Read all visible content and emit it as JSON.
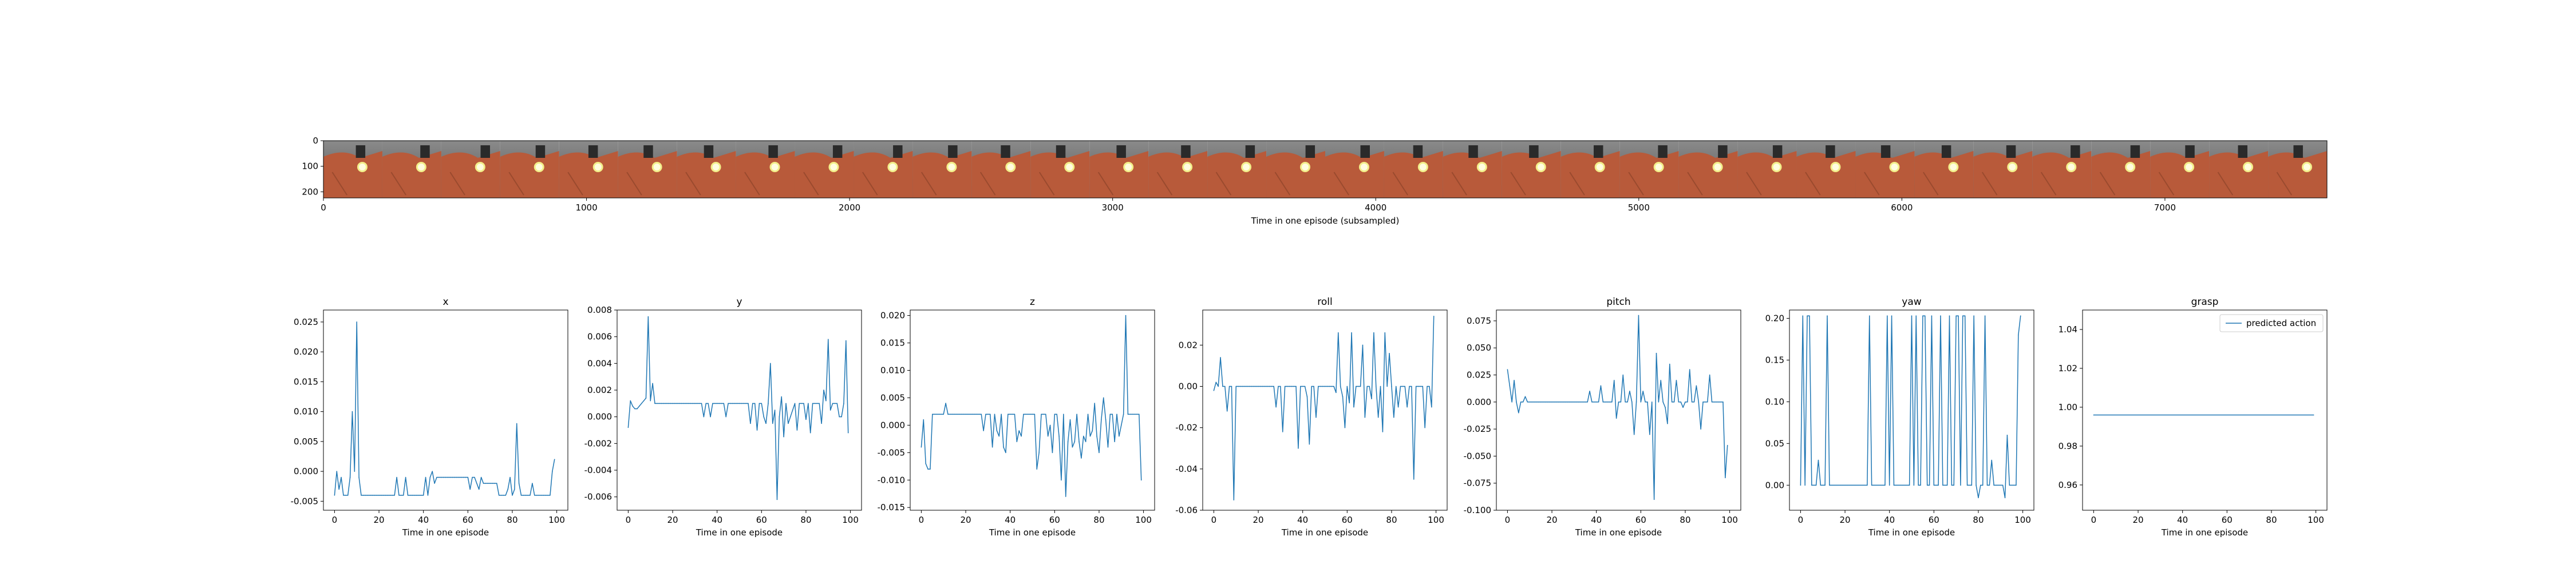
{
  "strip": {
    "xlabel": "Time in one episode (subsampled)",
    "xlim": [
      0,
      7616
    ],
    "ylim": [
      224,
      0
    ],
    "xticks": [
      0,
      1000,
      2000,
      3000,
      4000,
      5000,
      6000,
      7000
    ],
    "yticks": [
      0,
      100,
      200
    ],
    "frame_count": 34,
    "colors": {
      "robot": "#b85a3a",
      "floor": "#6e6e6e",
      "light": "#f3ef8a",
      "gripper": "#2a2a2a"
    }
  },
  "series_color": "#1f77b4",
  "chart_data": [
    {
      "type": "line",
      "title": "x",
      "xlabel": "Time in one episode",
      "xlim": [
        -5,
        105
      ],
      "ylim": [
        -0.0065,
        0.027
      ],
      "xticks": [
        0,
        20,
        40,
        60,
        80,
        100
      ],
      "yticks": [
        -0.005,
        0.0,
        0.005,
        0.01,
        0.015,
        0.02,
        0.025
      ],
      "yformat": 3,
      "x": [
        0,
        1,
        2,
        3,
        4,
        5,
        6,
        7,
        8,
        9,
        10,
        11,
        12,
        13,
        14,
        15,
        16,
        17,
        18,
        19,
        20,
        21,
        22,
        23,
        24,
        25,
        26,
        27,
        28,
        29,
        30,
        31,
        32,
        33,
        34,
        35,
        36,
        37,
        38,
        39,
        40,
        41,
        42,
        43,
        44,
        45,
        46,
        47,
        48,
        49,
        50,
        51,
        52,
        53,
        54,
        55,
        56,
        57,
        58,
        59,
        60,
        61,
        62,
        63,
        64,
        65,
        66,
        67,
        68,
        69,
        70,
        71,
        72,
        73,
        74,
        75,
        76,
        77,
        78,
        79,
        80,
        81,
        82,
        83,
        84,
        85,
        86,
        87,
        88,
        89,
        90,
        91,
        92,
        93,
        94,
        95,
        96,
        97,
        98,
        99
      ],
      "values": [
        -0.004,
        0.0,
        -0.003,
        -0.001,
        -0.004,
        -0.004,
        -0.004,
        -0.001,
        0.01,
        0.0,
        0.025,
        -0.001,
        -0.004,
        -0.004,
        -0.004,
        -0.004,
        -0.004,
        -0.004,
        -0.004,
        -0.004,
        -0.004,
        -0.004,
        -0.004,
        -0.004,
        -0.004,
        -0.004,
        -0.004,
        -0.004,
        -0.001,
        -0.004,
        -0.004,
        -0.004,
        -0.001,
        -0.004,
        -0.004,
        -0.004,
        -0.004,
        -0.004,
        -0.004,
        -0.004,
        -0.004,
        -0.001,
        -0.004,
        -0.001,
        0.0,
        -0.002,
        -0.001,
        -0.001,
        -0.001,
        -0.001,
        -0.001,
        -0.001,
        -0.001,
        -0.001,
        -0.001,
        -0.001,
        -0.001,
        -0.001,
        -0.001,
        -0.001,
        -0.001,
        -0.003,
        -0.001,
        -0.001,
        -0.002,
        -0.003,
        -0.001,
        -0.002,
        -0.002,
        -0.002,
        -0.002,
        -0.002,
        -0.002,
        -0.002,
        -0.004,
        -0.004,
        -0.004,
        -0.004,
        -0.003,
        -0.001,
        -0.004,
        -0.003,
        0.008,
        -0.002,
        -0.004,
        -0.004,
        -0.004,
        -0.004,
        -0.004,
        -0.002,
        -0.004,
        -0.004,
        -0.004,
        -0.004,
        -0.004,
        -0.004,
        -0.004,
        -0.004,
        0.0,
        0.002
      ]
    },
    {
      "type": "line",
      "title": "y",
      "xlabel": "Time in one episode",
      "xlim": [
        -5,
        105
      ],
      "ylim": [
        -0.007,
        0.008
      ],
      "xticks": [
        0,
        20,
        40,
        60,
        80,
        100
      ],
      "yticks": [
        -0.006,
        -0.004,
        -0.002,
        0.0,
        0.002,
        0.004,
        0.006,
        0.008
      ],
      "yformat": 3,
      "x": [
        0,
        1,
        2,
        3,
        4,
        5,
        6,
        7,
        8,
        9,
        10,
        11,
        12,
        13,
        14,
        15,
        16,
        17,
        18,
        19,
        20,
        21,
        22,
        23,
        24,
        25,
        26,
        27,
        28,
        29,
        30,
        31,
        32,
        33,
        34,
        35,
        36,
        37,
        38,
        39,
        40,
        41,
        42,
        43,
        44,
        45,
        46,
        47,
        48,
        49,
        50,
        51,
        52,
        53,
        54,
        55,
        56,
        57,
        58,
        59,
        60,
        61,
        62,
        63,
        64,
        65,
        66,
        67,
        68,
        69,
        70,
        71,
        72,
        73,
        74,
        75,
        76,
        77,
        78,
        79,
        80,
        81,
        82,
        83,
        84,
        85,
        86,
        87,
        88,
        89,
        90,
        91,
        92,
        93,
        94,
        95,
        96,
        97,
        98,
        99
      ],
      "values": [
        -0.0008,
        0.0012,
        0.0008,
        0.0006,
        0.0006,
        0.0008,
        0.001,
        0.0012,
        0.0014,
        0.0075,
        0.0012,
        0.0025,
        0.001,
        0.001,
        0.001,
        0.001,
        0.001,
        0.001,
        0.001,
        0.001,
        0.001,
        0.001,
        0.001,
        0.001,
        0.001,
        0.001,
        0.001,
        0.001,
        0.001,
        0.001,
        0.001,
        0.001,
        0.001,
        0.001,
        0.0,
        0.001,
        0.001,
        0.0,
        0.001,
        0.001,
        0.001,
        0.001,
        0.001,
        0.001,
        0.0,
        0.001,
        0.001,
        0.001,
        0.001,
        0.001,
        0.001,
        0.001,
        0.001,
        0.001,
        0.001,
        -0.0005,
        0.001,
        0.001,
        -0.001,
        0.001,
        0.001,
        0.0,
        -0.0005,
        0.001,
        0.004,
        -0.0005,
        0.0005,
        -0.0062,
        0.0,
        0.0015,
        -0.0015,
        0.001,
        -0.0005,
        0.0,
        0.0005,
        0.001,
        -0.001,
        0.001,
        0.001,
        0.001,
        -0.0002,
        0.001,
        -0.0012,
        0.001,
        0.001,
        0.001,
        0.001,
        -0.0005,
        0.002,
        0.0012,
        0.0058,
        0.0005,
        0.001,
        0.001,
        0.001,
        0.0,
        0.0,
        0.001,
        0.0057,
        -0.0012
      ]
    },
    {
      "type": "line",
      "title": "z",
      "xlabel": "Time in one episode",
      "xlim": [
        -5,
        105
      ],
      "ylim": [
        -0.0155,
        0.021
      ],
      "xticks": [
        0,
        20,
        40,
        60,
        80,
        100
      ],
      "yticks": [
        -0.015,
        -0.01,
        -0.005,
        0.0,
        0.005,
        0.01,
        0.015,
        0.02
      ],
      "yformat": 3,
      "x": [
        0,
        1,
        2,
        3,
        4,
        5,
        6,
        7,
        8,
        9,
        10,
        11,
        12,
        13,
        14,
        15,
        16,
        17,
        18,
        19,
        20,
        21,
        22,
        23,
        24,
        25,
        26,
        27,
        28,
        29,
        30,
        31,
        32,
        33,
        34,
        35,
        36,
        37,
        38,
        39,
        40,
        41,
        42,
        43,
        44,
        45,
        46,
        47,
        48,
        49,
        50,
        51,
        52,
        53,
        54,
        55,
        56,
        57,
        58,
        59,
        60,
        61,
        62,
        63,
        64,
        65,
        66,
        67,
        68,
        69,
        70,
        71,
        72,
        73,
        74,
        75,
        76,
        77,
        78,
        79,
        80,
        81,
        82,
        83,
        84,
        85,
        86,
        87,
        88,
        89,
        90,
        91,
        92,
        93,
        94,
        95,
        96,
        97,
        98,
        99
      ],
      "values": [
        -0.004,
        0.001,
        -0.007,
        -0.008,
        -0.008,
        0.002,
        0.002,
        0.002,
        0.002,
        0.002,
        0.002,
        0.004,
        0.002,
        0.002,
        0.002,
        0.002,
        0.002,
        0.002,
        0.002,
        0.002,
        0.002,
        0.002,
        0.002,
        0.002,
        0.002,
        0.002,
        0.002,
        0.002,
        -0.001,
        0.002,
        0.002,
        0.002,
        -0.004,
        0.002,
        -0.001,
        -0.002,
        0.002,
        -0.004,
        -0.005,
        0.002,
        0.002,
        0.002,
        0.002,
        -0.003,
        -0.001,
        -0.002,
        0.002,
        0.002,
        0.002,
        0.002,
        0.002,
        0.002,
        -0.008,
        -0.005,
        0.002,
        0.002,
        0.002,
        -0.002,
        0.0,
        -0.005,
        0.002,
        0.002,
        -0.002,
        -0.01,
        0.002,
        -0.013,
        -0.003,
        0.001,
        -0.004,
        -0.003,
        0.002,
        -0.003,
        -0.006,
        -0.002,
        -0.003,
        0.002,
        -0.002,
        -0.001,
        0.004,
        -0.002,
        -0.005,
        0.001,
        0.005,
        0.001,
        -0.004,
        0.002,
        0.002,
        -0.003,
        0.002,
        -0.002,
        0.0,
        0.002,
        0.02,
        0.002,
        0.002,
        0.002,
        0.002,
        0.002,
        0.002,
        -0.01
      ]
    },
    {
      "type": "line",
      "title": "roll",
      "xlabel": "Time in one episode",
      "xlim": [
        -5,
        105
      ],
      "ylim": [
        -0.06,
        0.037
      ],
      "xticks": [
        0,
        20,
        40,
        60,
        80,
        100
      ],
      "yticks": [
        -0.06,
        -0.04,
        -0.02,
        0.0,
        0.02
      ],
      "yformat": 2,
      "x": [
        0,
        1,
        2,
        3,
        4,
        5,
        6,
        7,
        8,
        9,
        10,
        11,
        12,
        13,
        14,
        15,
        16,
        17,
        18,
        19,
        20,
        21,
        22,
        23,
        24,
        25,
        26,
        27,
        28,
        29,
        30,
        31,
        32,
        33,
        34,
        35,
        36,
        37,
        38,
        39,
        40,
        41,
        42,
        43,
        44,
        45,
        46,
        47,
        48,
        49,
        50,
        51,
        52,
        53,
        54,
        55,
        56,
        57,
        58,
        59,
        60,
        61,
        62,
        63,
        64,
        65,
        66,
        67,
        68,
        69,
        70,
        71,
        72,
        73,
        74,
        75,
        76,
        77,
        78,
        79,
        80,
        81,
        82,
        83,
        84,
        85,
        86,
        87,
        88,
        89,
        90,
        91,
        92,
        93,
        94,
        95,
        96,
        97,
        98,
        99
      ],
      "values": [
        -0.002,
        0.002,
        0.0,
        0.014,
        0.0,
        0.0,
        -0.012,
        0.0,
        0.0,
        -0.055,
        0.0,
        0.0,
        0.0,
        0.0,
        0.0,
        0.0,
        0.0,
        0.0,
        0.0,
        0.0,
        0.0,
        0.0,
        0.0,
        0.0,
        0.0,
        0.0,
        0.0,
        0.0,
        -0.01,
        0.0,
        0.0,
        -0.022,
        0.0,
        0.0,
        0.0,
        0.0,
        0.0,
        0.0,
        -0.03,
        0.0,
        0.0,
        0.0,
        -0.005,
        -0.028,
        0.0,
        0.0,
        -0.015,
        0.0,
        0.0,
        0.0,
        0.0,
        0.0,
        0.0,
        0.0,
        0.0,
        -0.003,
        0.026,
        0.0,
        -0.005,
        -0.02,
        0.0,
        -0.008,
        0.026,
        -0.01,
        0.0,
        0.0,
        0.0,
        0.02,
        -0.015,
        0.0,
        0.0,
        -0.006,
        0.026,
        0.0,
        -0.015,
        0.0,
        -0.022,
        0.026,
        0.0,
        0.016,
        0.0,
        -0.015,
        0.0,
        -0.01,
        0.0,
        0.0,
        0.0,
        -0.01,
        0.0,
        0.0,
        -0.045,
        0.0,
        0.0,
        0.0,
        0.0,
        -0.02,
        0.0,
        0.0,
        -0.01,
        0.034
      ]
    },
    {
      "type": "line",
      "title": "pitch",
      "xlabel": "Time in one episode",
      "xlim": [
        -5,
        105
      ],
      "ylim": [
        -0.1,
        0.085
      ],
      "xticks": [
        0,
        20,
        40,
        60,
        80,
        100
      ],
      "yticks": [
        -0.1,
        -0.075,
        -0.05,
        -0.025,
        0.0,
        0.025,
        0.05,
        0.075
      ],
      "yformat": 3,
      "x": [
        0,
        1,
        2,
        3,
        4,
        5,
        6,
        7,
        8,
        9,
        10,
        11,
        12,
        13,
        14,
        15,
        16,
        17,
        18,
        19,
        20,
        21,
        22,
        23,
        24,
        25,
        26,
        27,
        28,
        29,
        30,
        31,
        32,
        33,
        34,
        35,
        36,
        37,
        38,
        39,
        40,
        41,
        42,
        43,
        44,
        45,
        46,
        47,
        48,
        49,
        50,
        51,
        52,
        53,
        54,
        55,
        56,
        57,
        58,
        59,
        60,
        61,
        62,
        63,
        64,
        65,
        66,
        67,
        68,
        69,
        70,
        71,
        72,
        73,
        74,
        75,
        76,
        77,
        78,
        79,
        80,
        81,
        82,
        83,
        84,
        85,
        86,
        87,
        88,
        89,
        90,
        91,
        92,
        93,
        94,
        95,
        96,
        97,
        98,
        99
      ],
      "values": [
        0.03,
        0.015,
        0.0,
        0.02,
        0.0,
        -0.01,
        0.0,
        0.0,
        0.005,
        0.0,
        0.0,
        0.0,
        0.0,
        0.0,
        0.0,
        0.0,
        0.0,
        0.0,
        0.0,
        0.0,
        0.0,
        0.0,
        0.0,
        0.0,
        0.0,
        0.0,
        0.0,
        0.0,
        0.0,
        0.0,
        0.0,
        0.0,
        0.0,
        0.0,
        0.0,
        0.0,
        0.0,
        0.01,
        0.0,
        0.0,
        0.0,
        0.0,
        0.015,
        0.0,
        0.0,
        0.0,
        0.0,
        0.0,
        0.02,
        -0.015,
        0.0,
        0.0,
        0.025,
        0.0,
        0.0,
        0.01,
        0.0,
        -0.03,
        0.0,
        0.08,
        0.0,
        0.01,
        0.0,
        0.0,
        -0.03,
        0.0,
        -0.09,
        0.045,
        0.0,
        0.02,
        0.0,
        -0.005,
        -0.02,
        0.035,
        0.0,
        0.0,
        0.02,
        0.0,
        0.0,
        -0.005,
        0.0,
        0.0,
        0.03,
        0.0,
        0.0,
        0.015,
        0.0,
        -0.025,
        0.0,
        0.0,
        0.0,
        0.025,
        0.0,
        0.0,
        0.0,
        0.0,
        0.0,
        0.0,
        -0.07,
        -0.04
      ]
    },
    {
      "type": "line",
      "title": "yaw",
      "xlabel": "Time in one episode",
      "xlim": [
        -5,
        105
      ],
      "ylim": [
        -0.03,
        0.21
      ],
      "xticks": [
        0,
        20,
        40,
        60,
        80,
        100
      ],
      "yticks": [
        0.0,
        0.05,
        0.1,
        0.15,
        0.2
      ],
      "yformat": 2,
      "x": [
        0,
        1,
        2,
        3,
        4,
        5,
        6,
        7,
        8,
        9,
        10,
        11,
        12,
        13,
        14,
        15,
        16,
        17,
        18,
        19,
        20,
        21,
        22,
        23,
        24,
        25,
        26,
        27,
        28,
        29,
        30,
        31,
        32,
        33,
        34,
        35,
        36,
        37,
        38,
        39,
        40,
        41,
        42,
        43,
        44,
        45,
        46,
        47,
        48,
        49,
        50,
        51,
        52,
        53,
        54,
        55,
        56,
        57,
        58,
        59,
        60,
        61,
        62,
        63,
        64,
        65,
        66,
        67,
        68,
        69,
        70,
        71,
        72,
        73,
        74,
        75,
        76,
        77,
        78,
        79,
        80,
        81,
        82,
        83,
        84,
        85,
        86,
        87,
        88,
        89,
        90,
        91,
        92,
        93,
        94,
        95,
        96,
        97,
        98,
        99
      ],
      "values": [
        0.0,
        0.203,
        0.0,
        0.203,
        0.203,
        0.0,
        0.0,
        0.0,
        0.03,
        0.0,
        0.0,
        0.0,
        0.203,
        0.0,
        0.0,
        0.0,
        0.0,
        0.0,
        0.0,
        0.0,
        0.0,
        0.0,
        0.0,
        0.0,
        0.0,
        0.0,
        0.0,
        0.0,
        0.0,
        0.0,
        0.0,
        0.203,
        0.0,
        0.0,
        0.0,
        0.0,
        0.0,
        0.0,
        0.0,
        0.203,
        0.0,
        0.203,
        0.0,
        0.0,
        0.0,
        0.0,
        0.0,
        0.0,
        0.0,
        0.0,
        0.203,
        0.0,
        0.203,
        0.0,
        0.0,
        0.203,
        0.203,
        0.0,
        0.0,
        0.203,
        0.0,
        0.0,
        0.0,
        0.203,
        0.0,
        0.0,
        0.0,
        0.203,
        0.0,
        0.0,
        0.203,
        0.203,
        0.0,
        0.203,
        0.203,
        0.0,
        0.0,
        0.0,
        0.203,
        0.0,
        -0.015,
        0.0,
        0.0,
        0.203,
        0.0,
        0.0,
        0.03,
        0.0,
        0.0,
        0.0,
        0.0,
        0.0,
        -0.015,
        0.06,
        0.0,
        0.0,
        0.0,
        0.0,
        0.18,
        0.203
      ]
    },
    {
      "type": "line",
      "title": "grasp",
      "xlabel": "Time in one episode",
      "xlim": [
        -5,
        105
      ],
      "ylim": [
        0.947,
        1.05
      ],
      "xticks": [
        0,
        20,
        40,
        60,
        80,
        100
      ],
      "yticks": [
        0.96,
        0.98,
        1.0,
        1.02,
        1.04
      ],
      "yformat": 2,
      "legend": "predicted action",
      "legend_position": "top-right",
      "x": [
        0,
        99
      ],
      "values": [
        0.996,
        0.996
      ]
    }
  ]
}
